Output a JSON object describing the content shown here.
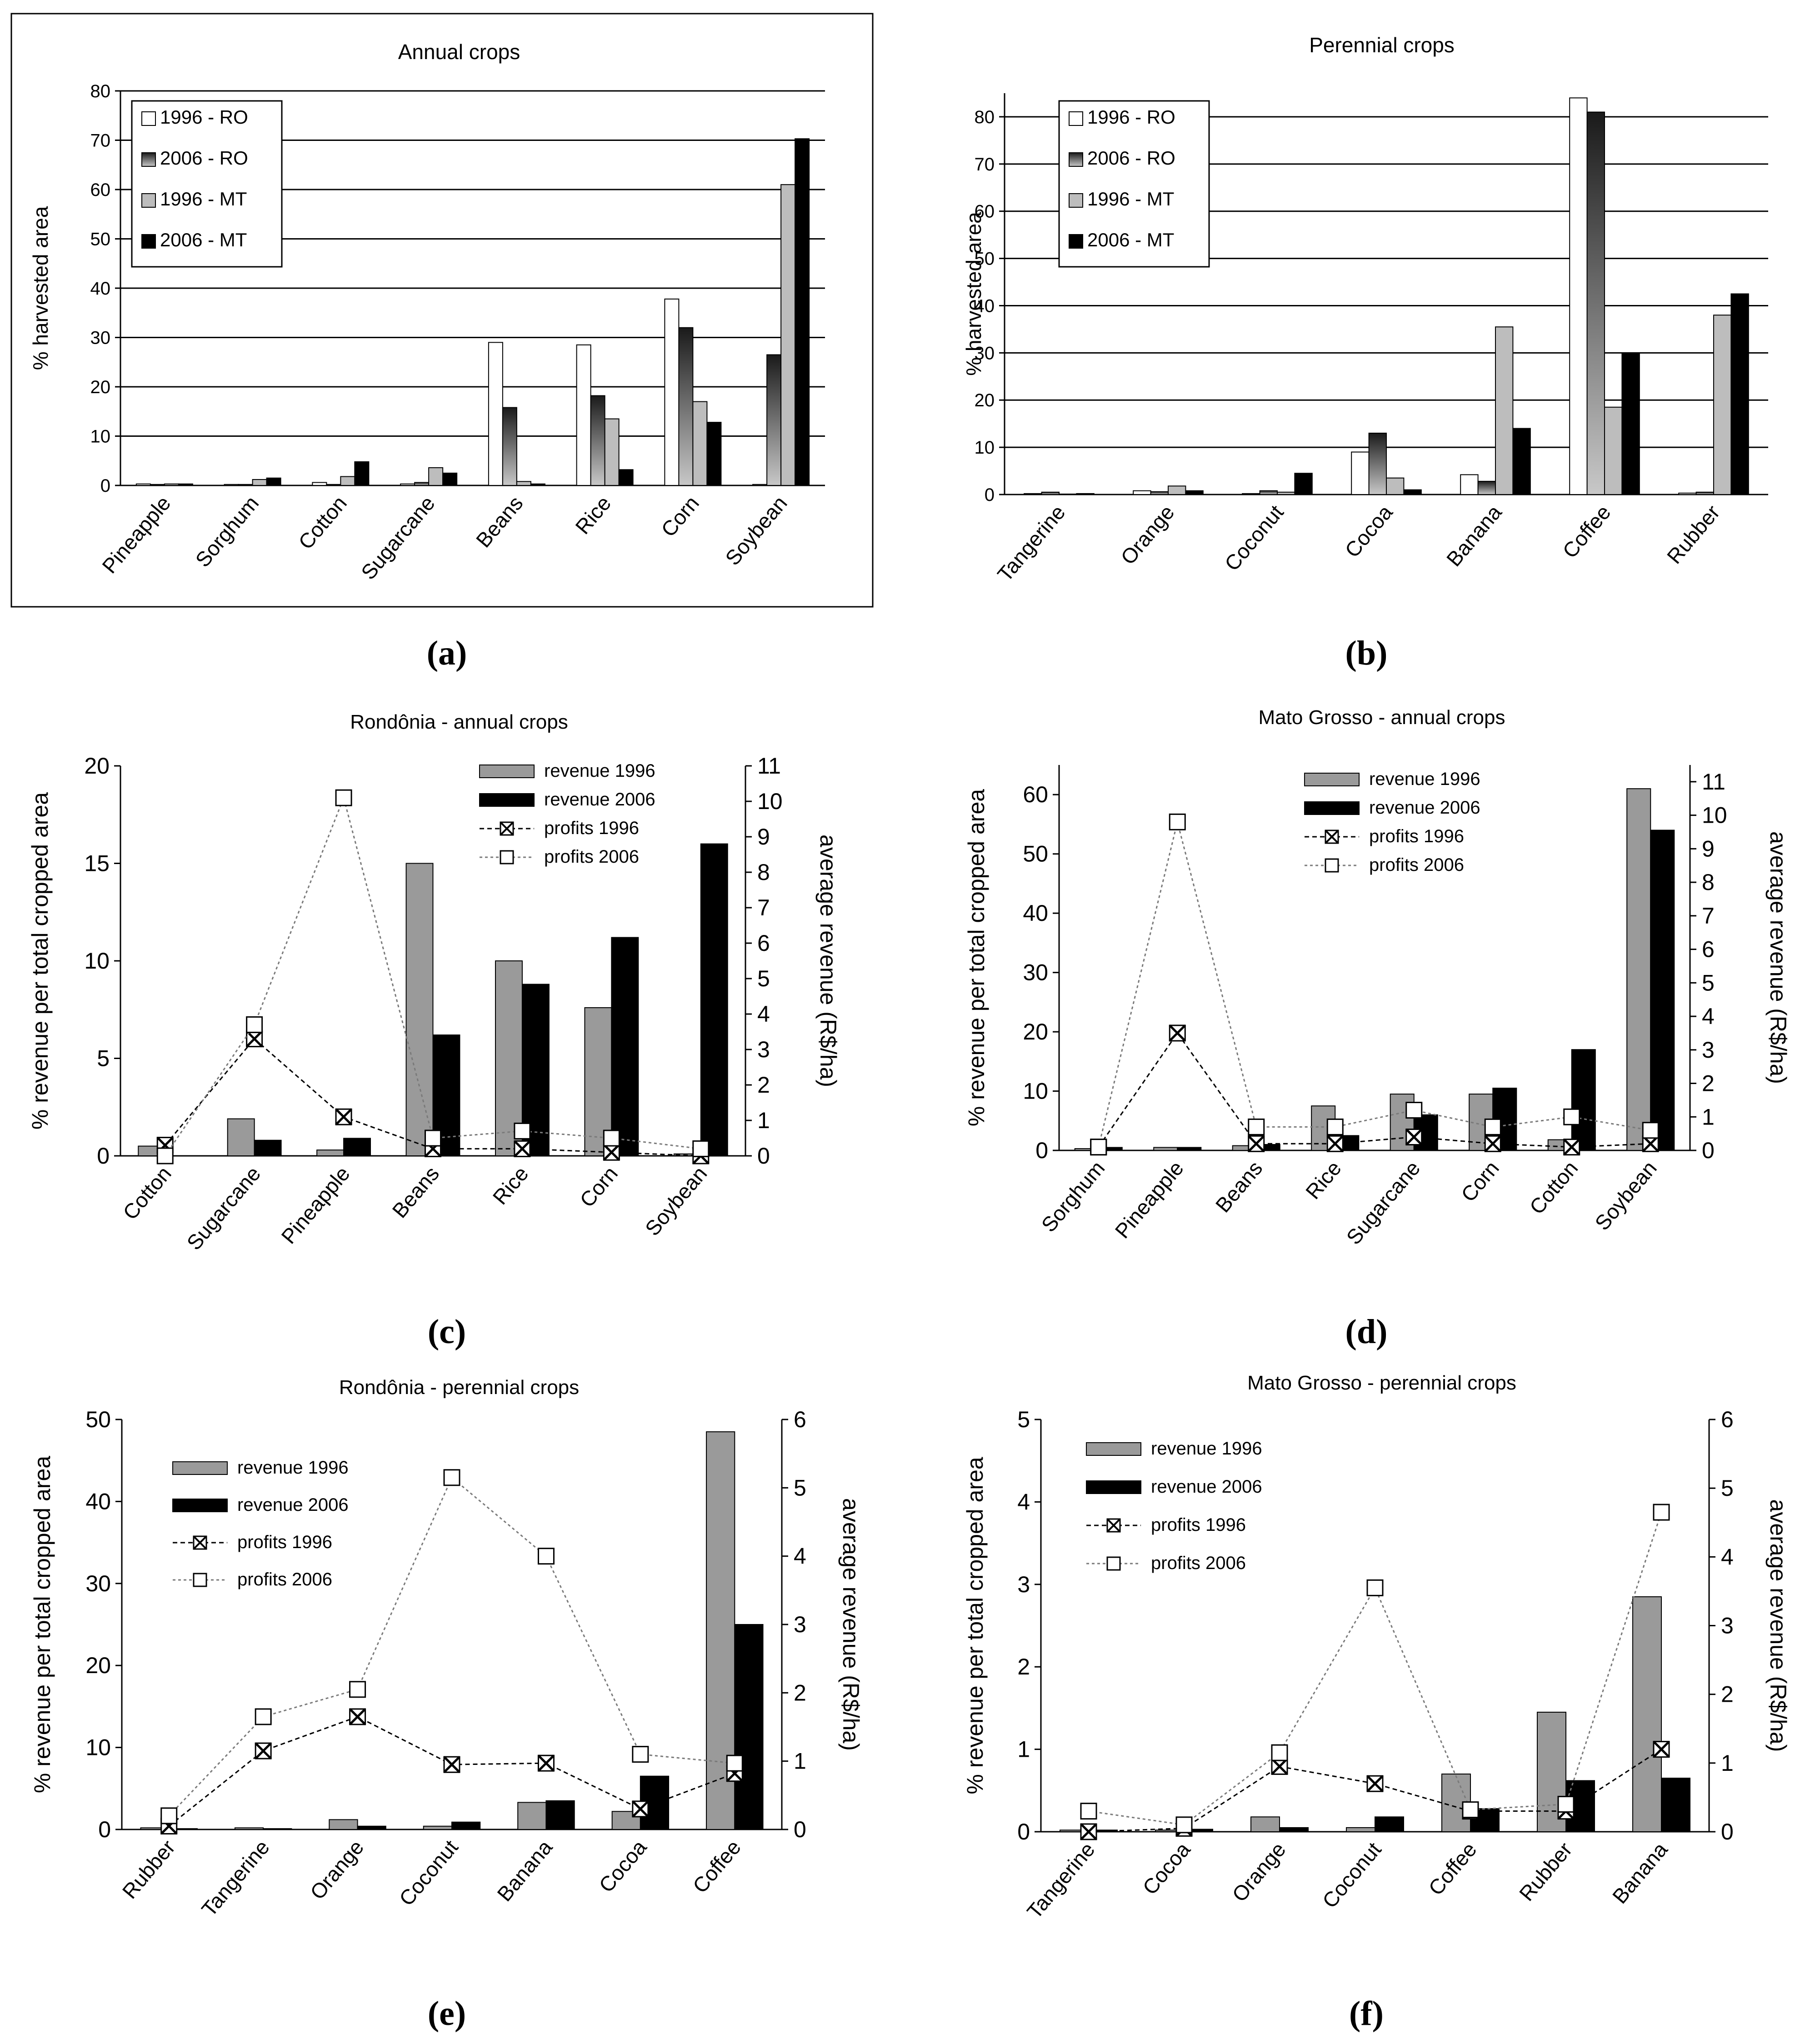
{
  "panel_labels": [
    "(a)",
    "(b)",
    "(c)",
    "(d)",
    "(e)",
    "(f)"
  ],
  "colors": {
    "ro1996": "#ffffff",
    "ro2006": "#4a4a4a",
    "mt1996": "#bdbdbd",
    "mt2006": "#000000",
    "rev1996": "#999999",
    "rev2006": "#000000"
  },
  "chart_data": [
    {
      "id": "a",
      "type": "bar",
      "title": "Annual crops",
      "ylabel": "% harvested area",
      "ylim": [
        0,
        80
      ],
      "yticks": [
        0,
        10,
        20,
        30,
        40,
        50,
        60,
        70,
        80
      ],
      "categories": [
        "Pineapple",
        "Sorghum",
        "Cotton",
        "Sugarcane",
        "Beans",
        "Rice",
        "Corn",
        "Soybean"
      ],
      "legend": [
        "1996 - RO",
        "2006 - RO",
        "1996 - MT",
        "2006 - MT"
      ],
      "series": [
        {
          "name": "1996 - RO",
          "values": [
            0.3,
            0.2,
            0.6,
            0.3,
            29,
            28.5,
            37.8,
            0.2
          ]
        },
        {
          "name": "2006 - RO",
          "values": [
            0.2,
            0.2,
            0.2,
            0.6,
            15.8,
            18.2,
            32,
            26.5
          ]
        },
        {
          "name": "1996 - MT",
          "values": [
            0.3,
            1.2,
            1.8,
            3.6,
            0.8,
            13.5,
            17,
            61
          ]
        },
        {
          "name": "2006 - MT",
          "values": [
            0.3,
            1.5,
            4.8,
            2.5,
            0.3,
            3.2,
            12.8,
            70.3
          ]
        }
      ]
    },
    {
      "id": "b",
      "type": "bar",
      "title": "Perennial crops",
      "ylabel": "% harvested  area",
      "ylim": [
        0,
        85
      ],
      "yticks": [
        0,
        10,
        20,
        30,
        40,
        50,
        60,
        70,
        80
      ],
      "categories": [
        "Tangerine",
        "Orange",
        "Coconut",
        "Cocoa",
        "Banana",
        "Coffee",
        "Rubber"
      ],
      "legend": [
        "1996 - RO",
        "2006 - RO",
        "1996 - MT",
        "2006 - MT"
      ],
      "series": [
        {
          "name": "1996 - RO",
          "values": [
            0.2,
            0.8,
            0.2,
            9,
            4.2,
            84,
            0.3
          ]
        },
        {
          "name": "2006 - RO",
          "values": [
            0.5,
            0.6,
            0.8,
            13,
            2.8,
            81,
            0.5
          ]
        },
        {
          "name": "1996 - MT",
          "values": [
            0.1,
            1.8,
            0.5,
            3.5,
            35.5,
            18.5,
            38
          ]
        },
        {
          "name": "2006 - MT",
          "values": [
            0.2,
            0.8,
            4.5,
            1,
            14,
            30,
            42.5
          ]
        }
      ]
    },
    {
      "id": "c",
      "type": "bar+line",
      "title": "Rondônia - annual crops",
      "ylabel": "% revenue per total cropped area",
      "y2label": "average revenue  (R$/ha)",
      "ylim": [
        0,
        20
      ],
      "yticks": [
        0,
        5,
        10,
        15,
        20
      ],
      "y2lim": [
        0,
        11
      ],
      "y2ticks": [
        0,
        1,
        2,
        3,
        4,
        5,
        6,
        7,
        8,
        9,
        10,
        11
      ],
      "categories": [
        "Cotton",
        "Sugarcane",
        "Pineapple",
        "Beans",
        "Rice",
        "Corn",
        "Soybean"
      ],
      "legend": [
        "revenue 1996",
        "revenue 2006",
        "profits 1996",
        "profits 2006"
      ],
      "bars": [
        {
          "name": "revenue 1996",
          "values": [
            0.5,
            1.9,
            0.3,
            15,
            10,
            7.6,
            0.1
          ]
        },
        {
          "name": "revenue 2006",
          "values": [
            0,
            0.8,
            0.9,
            6.2,
            8.8,
            11.2,
            16
          ]
        }
      ],
      "lines": [
        {
          "name": "profits 1996",
          "values": [
            0.3,
            3.3,
            1.1,
            0.2,
            0.2,
            0.1,
            0.0
          ]
        },
        {
          "name": "profits 2006",
          "values": [
            0.0,
            3.7,
            10.1,
            0.5,
            0.7,
            0.5,
            0.2
          ]
        }
      ]
    },
    {
      "id": "d",
      "type": "bar+line",
      "title": "Mato Grosso - annual crops",
      "ylabel": "% revenue per total cropped area",
      "y2label": "average revenue  (R$/ha)",
      "ylim": [
        0,
        65
      ],
      "yticks": [
        0,
        10,
        20,
        30,
        40,
        50,
        60
      ],
      "y2lim": [
        0,
        11.5
      ],
      "y2ticks": [
        0,
        1,
        2,
        3,
        4,
        5,
        6,
        7,
        8,
        9,
        10,
        11
      ],
      "categories": [
        "Sorghum",
        "Pineapple",
        "Beans",
        "Rice",
        "Sugarcane",
        "Corn",
        "Cotton",
        "Soybean"
      ],
      "legend": [
        "revenue 1996",
        "revenue 2006",
        "profits 1996",
        "profits 2006"
      ],
      "bars": [
        {
          "name": "revenue 1996",
          "values": [
            0.3,
            0.5,
            0.8,
            7.5,
            9.5,
            9.5,
            1.8,
            61
          ]
        },
        {
          "name": "revenue 2006",
          "values": [
            0.5,
            0.5,
            1,
            2.5,
            6,
            10.5,
            17,
            54
          ]
        },
        {
          "name": "_",
          "values": []
        }
      ],
      "lines": [
        {
          "name": "profits 1996",
          "values": [
            0.1,
            3.5,
            0.2,
            0.2,
            0.4,
            0.2,
            0.1,
            0.2
          ]
        },
        {
          "name": "profits 2006",
          "values": [
            0.1,
            9.8,
            0.7,
            0.7,
            1.2,
            0.7,
            1.0,
            0.6
          ]
        }
      ]
    },
    {
      "id": "e",
      "type": "bar+line",
      "title": "Rondônia - perennial crops",
      "ylabel": "% revenue per total cropped area",
      "y2label": "average revenue  (R$/ha)",
      "ylim": [
        0,
        50
      ],
      "yticks": [
        0,
        10,
        20,
        30,
        40,
        50
      ],
      "y2lim": [
        0,
        6
      ],
      "y2ticks": [
        0,
        1,
        2,
        3,
        4,
        5,
        6
      ],
      "categories": [
        "Rubber",
        "Tangerine",
        "Orange",
        "Coconut",
        "Banana",
        "Cocoa",
        "Coffee"
      ],
      "legend": [
        "revenue 1996",
        "revenue 2006",
        "profits 1996",
        "profits 2006"
      ],
      "bars": [
        {
          "name": "revenue 1996",
          "values": [
            0.2,
            0.2,
            1.2,
            0.4,
            3.3,
            2.2,
            48.5
          ]
        },
        {
          "name": "revenue 2006",
          "values": [
            0.1,
            0.1,
            0.4,
            0.9,
            3.5,
            6.5,
            25
          ]
        }
      ],
      "lines": [
        {
          "name": "profits 1996",
          "values": [
            0.05,
            1.15,
            1.65,
            0.95,
            0.97,
            0.3,
            0.82
          ]
        },
        {
          "name": "profits 2006",
          "values": [
            0.2,
            1.65,
            2.05,
            5.15,
            4.0,
            1.1,
            0.97
          ]
        }
      ]
    },
    {
      "id": "f",
      "type": "bar+line",
      "title": "Mato Grosso - perennial crops",
      "ylabel": "% revenue per total cropped area",
      "y2label": "average revenue  (R$/ha)",
      "ylim": [
        0,
        5
      ],
      "yticks": [
        0,
        1,
        2,
        3,
        4,
        5
      ],
      "y2lim": [
        0,
        6
      ],
      "y2ticks": [
        0,
        1,
        2,
        3,
        4,
        5,
        6
      ],
      "categories": [
        "Tangerine",
        "Cocoa",
        "Orange",
        "Coconut",
        "Coffee",
        "Rubber",
        "Banana"
      ],
      "legend": [
        "revenue 1996",
        "revenue 2006",
        "profits 1996",
        "profits 2006"
      ],
      "bars": [
        {
          "name": "revenue 1996",
          "values": [
            0.02,
            0.02,
            0.18,
            0.05,
            0.7,
            1.45,
            2.85
          ]
        },
        {
          "name": "revenue 2006",
          "values": [
            0.02,
            0.03,
            0.05,
            0.18,
            0.28,
            0.62,
            0.65
          ]
        }
      ],
      "lines": [
        {
          "name": "profits 1996",
          "values": [
            0.0,
            0.05,
            0.95,
            0.7,
            0.3,
            0.3,
            1.2
          ]
        },
        {
          "name": "profits 2006",
          "values": [
            0.3,
            0.1,
            1.15,
            3.55,
            0.32,
            0.4,
            4.65
          ]
        }
      ]
    }
  ]
}
